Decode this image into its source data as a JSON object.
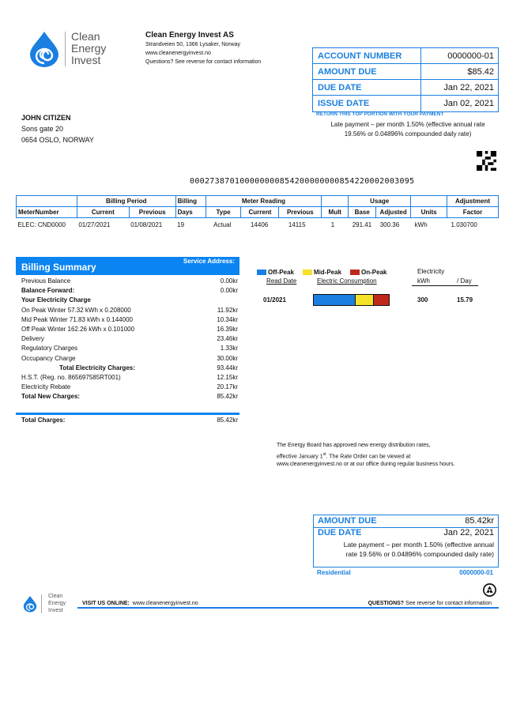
{
  "brand": {
    "logo_text": [
      "Clean",
      "Energy",
      "Invest"
    ],
    "color": "#1a7fe0"
  },
  "company": {
    "name": "Clean Energy Invest AS",
    "address": "Strandveien 50, 1366 Lysaker, Norway",
    "website": "www.cleanenergyinvest.no",
    "questions": "Questions? See reverse for contact information"
  },
  "account_box": [
    {
      "label": "ACCOUNT NUMBER",
      "value": "0000000-01"
    },
    {
      "label": "AMOUNT DUE",
      "value": "$85.42"
    },
    {
      "label": "DUE DATE",
      "value": "Jan 22, 2021"
    },
    {
      "label": "ISSUE DATE",
      "value": "Jan 02, 2021"
    }
  ],
  "return_note": "RETURN THIS TOP PORTION WITH YOUR PAYMENT",
  "late_payment": [
    "Late payment – per month 1.50% (effective annual rate",
    "19.56% or 0.04896% compounded daily rate)"
  ],
  "customer": {
    "name": "JOHN CITIZEN",
    "street": "Sons gate 20",
    "city": "0654 OSLO, NORWAY"
  },
  "barcode_number": "000273870100000000854200000000854220002003095",
  "meter_table": {
    "groups": [
      "",
      "Billing Period",
      "Billing",
      "Meter Reading",
      "",
      "Usage",
      "",
      "Adjustment"
    ],
    "headers": [
      "MeterNumber",
      "Current",
      "Previous",
      "Days",
      "Type",
      "Current",
      "Previous",
      "Mult",
      "Base",
      "Adjusted",
      "Units",
      "Factor"
    ],
    "row": [
      "ELEC: CND0000",
      "01/27/2021",
      "01/08/2021",
      "19",
      "Actual",
      "14406",
      "14115",
      "1",
      "291.41",
      "300.36",
      "kWh",
      "1.030700"
    ]
  },
  "billing_summary": {
    "title": "Billing Summary",
    "service_address": "Service Address:",
    "rows": [
      {
        "label": "Previous Balance",
        "value": "0.00kr",
        "style": ""
      },
      {
        "label": "Balance Forward:",
        "value": "0.00kr",
        "style": "bold"
      },
      {
        "label": "Your Electricity Charge",
        "value": "",
        "style": "bold"
      },
      {
        "label": "On Peak Winter 57.32 kWh x 0.208000",
        "value": "11.92kr",
        "style": ""
      },
      {
        "label": "Mid Peak Winter 71.83 kWh x 0.144000",
        "value": "10.34kr",
        "style": ""
      },
      {
        "label": "Off Peak Winter 162.26 kWh x 0.101000",
        "value": "16.39kr",
        "style": ""
      },
      {
        "label": "Delivery",
        "value": "23.46kr",
        "style": ""
      },
      {
        "label": "Regulatory Charges",
        "value": "1.33kr",
        "style": ""
      },
      {
        "label": "Occupancy Charge",
        "value": "30.00kr",
        "style": ""
      },
      {
        "label": "Total Electricity Charges:",
        "value": "93.44kr",
        "style": "bold-center"
      },
      {
        "label": "H.S.T. (Reg. no. 865697585RT001)",
        "value": "12.15kr",
        "style": ""
      },
      {
        "label": "Electricity Rebate",
        "value": "20.17kr",
        "style": ""
      },
      {
        "label": "Total New Charges:",
        "value": "85.42kr",
        "style": "bold"
      }
    ],
    "total_label": "Total Charges:",
    "total_value": "85.42kr"
  },
  "consumption": {
    "legend": [
      {
        "label": "Off-Peak",
        "color": "#1a7fe0"
      },
      {
        "label": "Mid-Peak",
        "color": "#f5e12a"
      },
      {
        "label": "On-Peak",
        "color": "#c0281b"
      }
    ],
    "col_read_date": "Read Date",
    "col_consumption": "Electric Consumption",
    "col_elec": "Electricity",
    "col_kwh": "kWh",
    "col_day": "/ Day",
    "row": {
      "date": "01/2021",
      "kwh": "300",
      "per_day": "15.79",
      "shares": {
        "off_peak": 162.26,
        "mid_peak": 71.83,
        "on_peak": 57.32
      }
    }
  },
  "notice": [
    "The Energy Board has approved new energy distribution rates,",
    "effective January 1",
    "st",
    ". The Rate Order can be viewed at",
    "www.cleanenergyinvest.no or at our office during regular business hours."
  ],
  "stub": {
    "amount_label": "AMOUNT DUE",
    "amount": "85.42kr",
    "due_label": "DUE DATE",
    "due": "Jan 22, 2021",
    "late": [
      "Late payment – per month 1.50% (effective annual",
      "rate 19.56% or 0.04896% compounded daily rate)"
    ],
    "type": "Residential",
    "account": "0000000-01"
  },
  "footer": {
    "visit_label": "VISIT US ONLINE:",
    "visit_url": "www.cleanenergyinvest.no",
    "questions_label": "QUESTIONS?",
    "questions_text": "See reverse for contact information"
  }
}
